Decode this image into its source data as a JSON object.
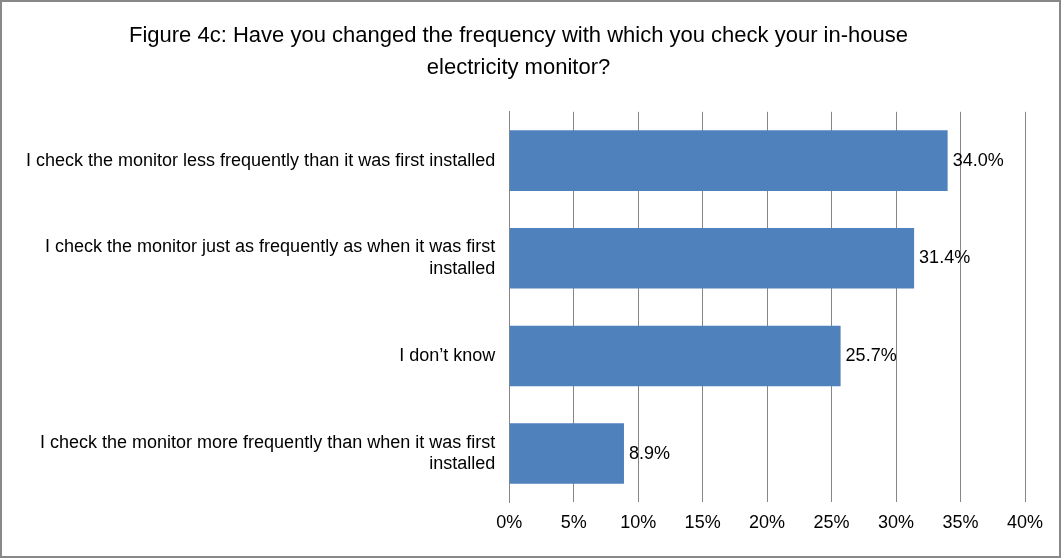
{
  "chart_data": {
    "type": "bar",
    "orientation": "horizontal",
    "title": "Figure 4c: Have you changed the frequency with which you check your in-house electricity monitor?",
    "categories": [
      "I check the monitor less frequently than it was first installed",
      "I check the monitor just as frequently as when it was first installed",
      "I don’t know",
      "I check the monitor more frequently than when it was first installed"
    ],
    "values": [
      34.0,
      31.4,
      25.7,
      8.9
    ],
    "value_labels": [
      "34.0%",
      "31.4%",
      "25.7%",
      "8.9%"
    ],
    "color": "#4f81bd",
    "xlim": [
      0,
      40
    ],
    "xticks": [
      {
        "value": 0,
        "label": "0%"
      },
      {
        "value": 5,
        "label": "5%"
      },
      {
        "value": 10,
        "label": "10%"
      },
      {
        "value": 15,
        "label": "15%"
      },
      {
        "value": 20,
        "label": "20%"
      },
      {
        "value": 25,
        "label": "25%"
      },
      {
        "value": 30,
        "label": "30%"
      },
      {
        "value": 35,
        "label": "35%"
      },
      {
        "value": 40,
        "label": "40%"
      }
    ],
    "grid": "x",
    "legend": false
  }
}
